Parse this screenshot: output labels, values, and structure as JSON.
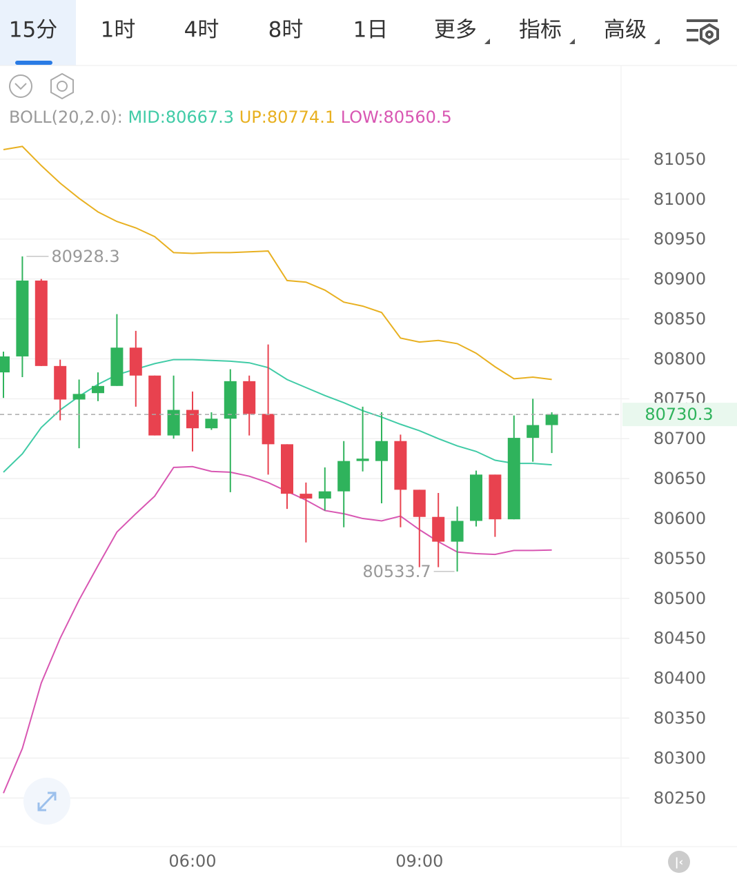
{
  "tabs": [
    "15分",
    "1时",
    "4时",
    "8时",
    "1日",
    "更多",
    "指标",
    "高级"
  ],
  "chart_data": {
    "type": "candlestick",
    "indicator": {
      "name": "BOLL(20,2.0):",
      "mid": "MID:80667.3",
      "up": "UP:80774.1",
      "low": "LOW:80560.5"
    },
    "categories": [
      null,
      null,
      null,
      null,
      null,
      null,
      null,
      null,
      null,
      null,
      "06:00",
      null,
      null,
      null,
      null,
      null,
      null,
      null,
      null,
      null,
      null,
      null,
      "09:00",
      null,
      null,
      null,
      null,
      null,
      null,
      null
    ],
    "open": [
      80783,
      80803,
      80898,
      80791,
      80749,
      80757,
      80766,
      80814,
      80779,
      80704,
      80736,
      80713,
      80725,
      80772,
      80731,
      80693,
      80631,
      80625,
      80634,
      80672,
      80672,
      80697,
      80636,
      80602,
      80571,
      80597,
      80655,
      80599,
      80701,
      80717
    ],
    "high": [
      80809,
      80928.3,
      80900,
      80799,
      80774,
      80783,
      80856,
      80835,
      80779,
      80779,
      80759,
      80733,
      80787,
      80779,
      80818,
      80693,
      80645,
      80664,
      80697,
      80740,
      80733,
      80705,
      80636,
      80632,
      80615,
      80660,
      80655,
      80729,
      80750,
      80733
    ],
    "low": [
      80751,
      80777,
      80791,
      80723,
      80688,
      80747,
      80766,
      80740,
      80704,
      80700,
      80684,
      80711,
      80633,
      80704,
      80655,
      80612,
      80570,
      80610,
      80589,
      80659,
      80619,
      80589,
      80539,
      80539,
      80533.7,
      80590,
      80577,
      80599,
      80671,
      80682
    ],
    "close": [
      80803,
      80898,
      80791,
      80749,
      80756,
      80766,
      80814,
      80779,
      80704,
      80736,
      80713,
      80725,
      80772,
      80731,
      80693,
      80631,
      80625,
      80634,
      80672,
      80675,
      80697,
      80636,
      80602,
      80571,
      80597,
      80655,
      80599,
      80701,
      80717,
      80730.3
    ],
    "up_color": "#2fb35c",
    "down_color": "#e8424f",
    "series": [
      {
        "name": "UP",
        "color": "#e8b020",
        "values": [
          81062,
          81066,
          81042,
          81020,
          81001,
          80984,
          80972,
          80964,
          80953,
          80933,
          80932,
          80933,
          80933,
          80934,
          80935,
          80898,
          80896,
          80886,
          80871,
          80866,
          80858,
          80826,
          80821,
          80823,
          80819,
          80807,
          80790,
          80775,
          80777,
          80774.1
        ]
      },
      {
        "name": "MID",
        "color": "#40cba6",
        "values": [
          80658,
          80681,
          80714,
          80736,
          80753,
          80768,
          80780,
          80787,
          80794,
          80799,
          80799,
          80798,
          80797,
          80795,
          80789,
          80774,
          80764,
          80754,
          80745,
          80735,
          80727,
          80718,
          80710,
          80700,
          80691,
          80684,
          80673,
          80669,
          80669,
          80667.3
        ]
      },
      {
        "name": "LOW",
        "color": "#d856b2",
        "values": [
          80256,
          80312,
          80394,
          80450,
          80498,
          80541,
          80583,
          80606,
          80628,
          80664,
          80665,
          80659,
          80658,
          80653,
          80645,
          80634,
          80623,
          80610,
          80606,
          80600,
          80597,
          80603,
          80586,
          80571,
          80558,
          80556,
          80555,
          80560,
          80560,
          80560.5
        ]
      }
    ],
    "annotations": [
      {
        "index": 1,
        "value": 80928.3
      },
      {
        "index": 24,
        "value": 80533.7
      }
    ],
    "last_price": 80730.3,
    "ylim": [
      80189,
      81081
    ],
    "yticks": [
      80250,
      80300,
      80350,
      80400,
      80450,
      80500,
      80550,
      80600,
      80650,
      80700,
      80750,
      80800,
      80850,
      80900,
      80950,
      81000,
      81050
    ],
    "grid": true
  }
}
